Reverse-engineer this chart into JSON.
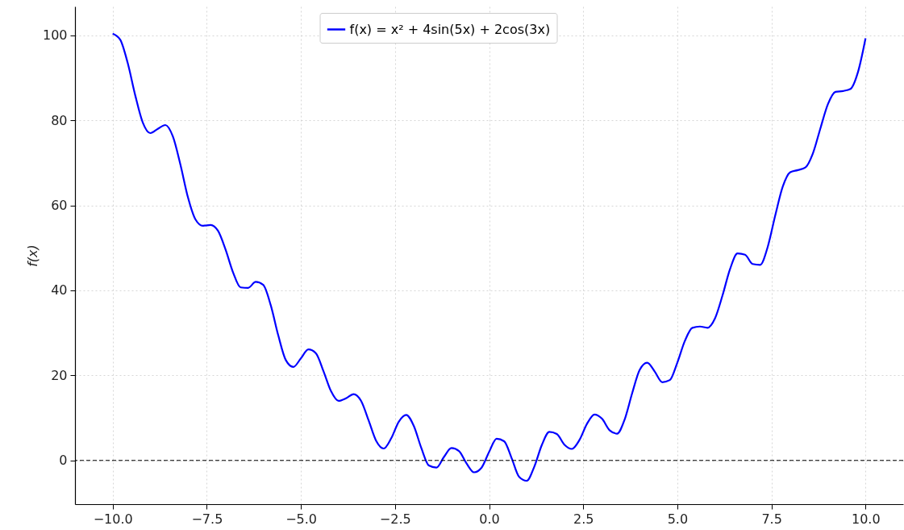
{
  "chart_data": {
    "type": "line",
    "ylabel": "f(x)",
    "x": [
      -10,
      -9.8,
      -9.6,
      -9.4,
      -9.2,
      -9,
      -8.8,
      -8.6,
      -8.4,
      -8.2,
      -8,
      -7.8,
      -7.6,
      -7.4,
      -7.2,
      -7,
      -6.8,
      -6.6,
      -6.4,
      -6.2,
      -6,
      -5.8,
      -5.6,
      -5.4,
      -5.2,
      -5,
      -4.8,
      -4.6,
      -4.4,
      -4.2,
      -4,
      -3.8,
      -3.6,
      -3.4,
      -3.2,
      -3,
      -2.8,
      -2.6,
      -2.4,
      -2.2,
      -2,
      -1.8,
      -1.6,
      -1.4,
      -1.2,
      -1,
      -0.8,
      -0.6,
      -0.4,
      -0.2,
      0,
      0.2,
      0.4,
      0.6,
      0.8,
      1,
      1.2,
      1.4,
      1.6,
      1.8,
      2,
      2.2,
      2.4,
      2.6,
      2.8,
      3,
      3.2,
      3.4,
      3.6,
      3.8,
      4,
      4.2,
      4.4,
      4.6,
      4.8,
      5,
      5.2,
      5.4,
      5.6,
      5.8,
      6,
      6.2,
      6.4,
      6.6,
      6.8,
      7,
      7.2,
      7.4,
      7.6,
      7.8,
      8,
      8.2,
      8.4,
      8.6,
      8.8,
      9,
      9.2,
      9.4,
      9.6,
      9.8,
      10
    ],
    "series": [
      {
        "name": "f(x) = x² + 4sin(5x) + 2cos(3x)",
        "color": "#0000ff",
        "line_style": "solid",
        "values": [
          100.4,
          99.0,
          93.5,
          85.9,
          79.5,
          77.0,
          78.0,
          78.9,
          76.2,
          69.6,
          61.9,
          56.7,
          55.2,
          55.4,
          54.0,
          49.6,
          44.2,
          40.7,
          40.6,
          42.0,
          41.3,
          36.5,
          29.4,
          23.6,
          22.0,
          24.0,
          26.1,
          25.2,
          21.0,
          16.3,
          14.0,
          14.6,
          15.6,
          14.0,
          9.4,
          4.6,
          2.8,
          5.2,
          9.1,
          10.7,
          8.1,
          2.9,
          -1.2,
          -1.7,
          0.8,
          2.9,
          2.2,
          -0.7,
          -2.8,
          -1.7,
          2.0,
          5.1,
          4.5,
          0.5,
          -3.9,
          -4.8,
          -1.5,
          3.6,
          6.7,
          6.2,
          3.7,
          2.7,
          4.8,
          8.6,
          10.8,
          9.8,
          7.1,
          6.3,
          9.6,
          15.8,
          21.3,
          23.0,
          20.9,
          18.4,
          18.9,
          23.0,
          28.1,
          31.2,
          31.5,
          31.2,
          33.4,
          38.8,
          45.0,
          48.7,
          48.4,
          46.2,
          46.0,
          50.2,
          57.6,
          64.4,
          67.8,
          68.3,
          68.9,
          72.2,
          78.1,
          83.8,
          86.7,
          86.9,
          87.4,
          91.4,
          99.3
        ]
      }
    ],
    "xlim": [
      -11,
      11
    ],
    "ylim": [
      -10.3,
      106.8
    ],
    "xticks": [
      {
        "value": -10,
        "label": "−10.0"
      },
      {
        "value": -7.5,
        "label": "−7.5"
      },
      {
        "value": -5,
        "label": "−5.0"
      },
      {
        "value": -2.5,
        "label": "−2.5"
      },
      {
        "value": 0,
        "label": "0.0"
      },
      {
        "value": 2.5,
        "label": "2.5"
      },
      {
        "value": 5,
        "label": "5.0"
      },
      {
        "value": 7.5,
        "label": "7.5"
      },
      {
        "value": 10,
        "label": "10.0"
      }
    ],
    "yticks": [
      0,
      20,
      40,
      60,
      80,
      100
    ],
    "ref_lines": [
      {
        "axis": "y",
        "value": 0,
        "color": "#000000",
        "line_style": "dashed"
      }
    ],
    "grid": true,
    "legend": "top"
  }
}
